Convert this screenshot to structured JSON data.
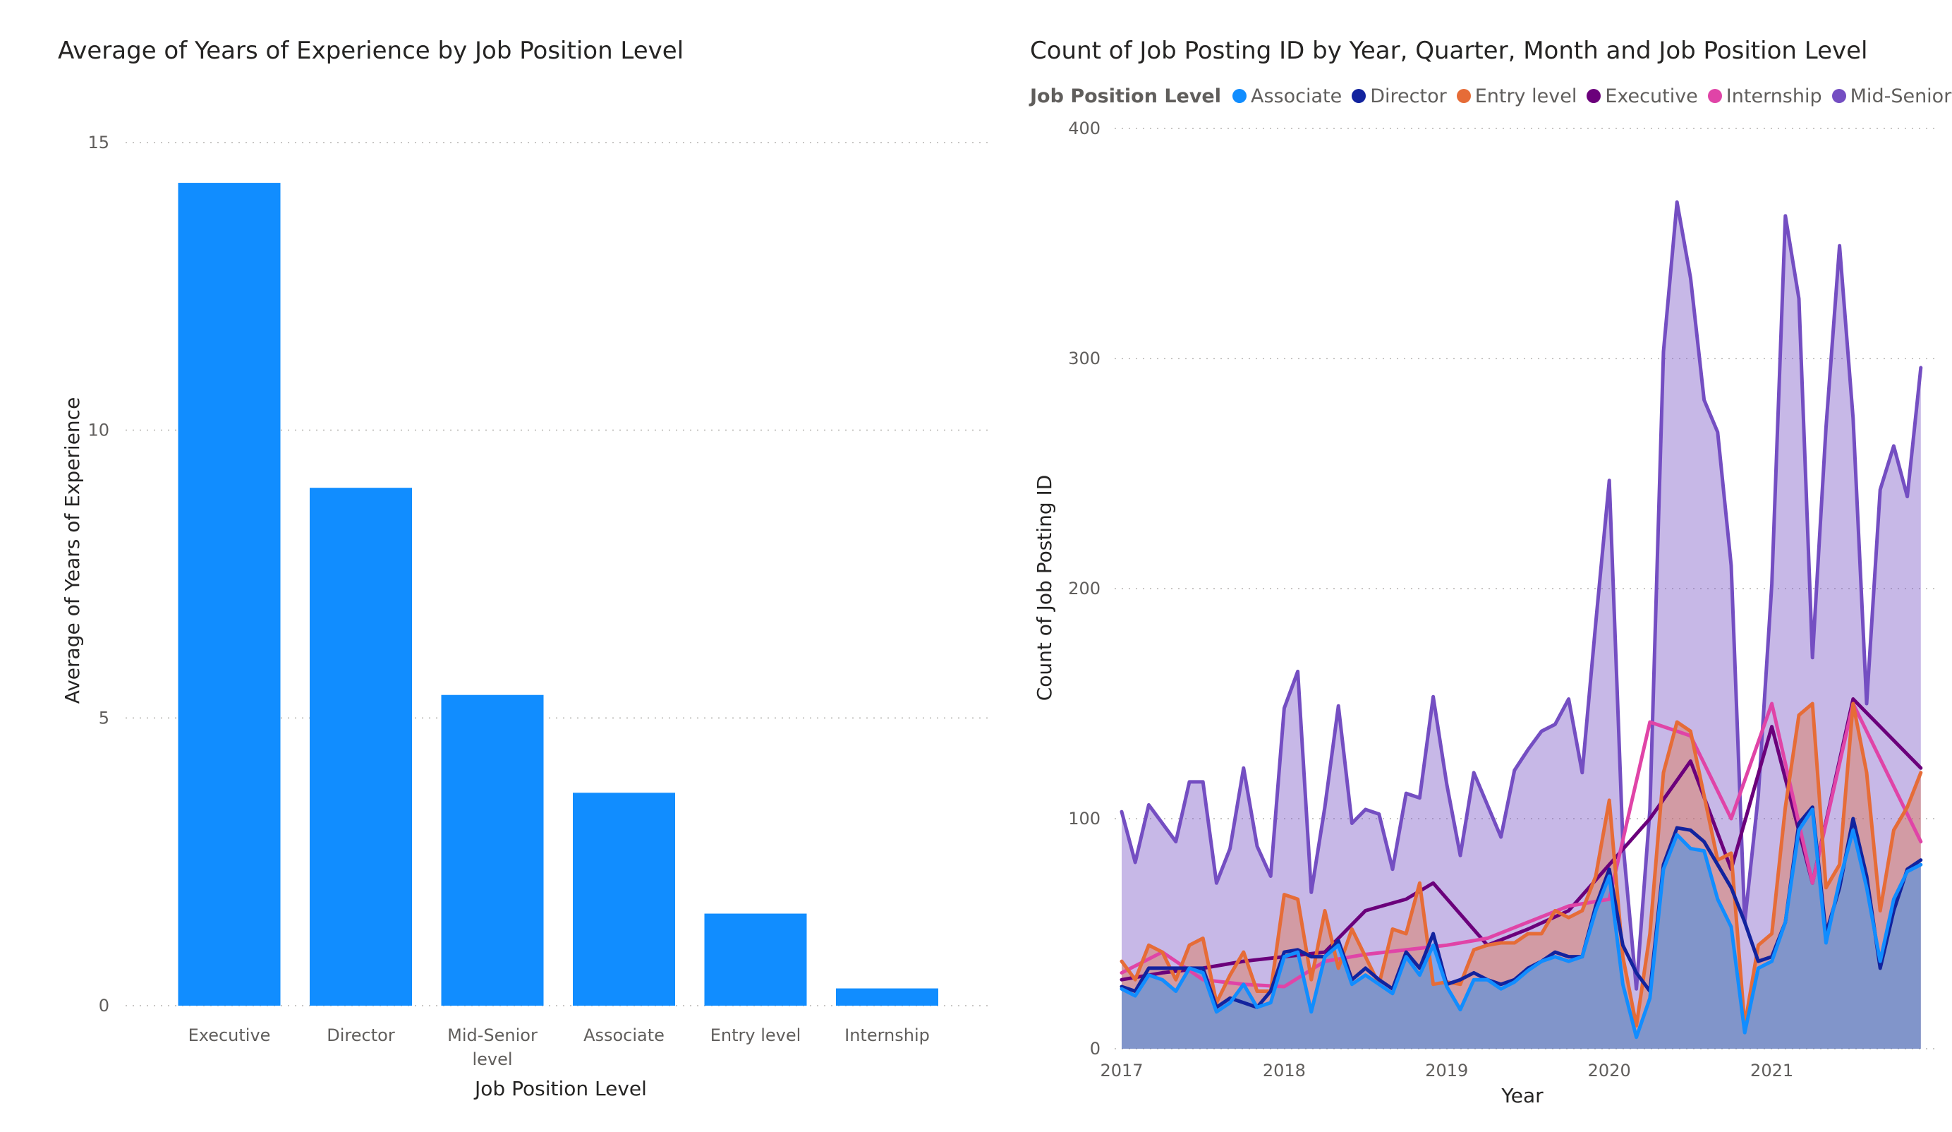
{
  "chart_data": [
    {
      "type": "bar",
      "title": "Average of Years of Experience by Job Position Level",
      "xlabel": "Job Position Level",
      "ylabel": "Average of Years of Experience",
      "categories": [
        "Executive",
        "Director",
        "Mid-Senior level",
        "Associate",
        "Entry level",
        "Internship"
      ],
      "values": [
        14.3,
        9.0,
        5.4,
        3.7,
        1.6,
        0.3
      ],
      "ylim": [
        0,
        15
      ],
      "yticks": [
        0,
        5,
        10,
        15
      ],
      "grid": true,
      "color": "#118DFF"
    },
    {
      "type": "area",
      "title": "Count of Job Posting ID by Year, Quarter, Month and Job Position Level",
      "xlabel": "Year",
      "ylabel": "Count of Job Posting ID",
      "legend_title": "Job Position Level",
      "legend_position": "top",
      "ylim": [
        0,
        400
      ],
      "yticks": [
        0,
        100,
        200,
        300,
        400
      ],
      "xlim": [
        "2017-01",
        "2021-12"
      ],
      "xticks": [
        "2017",
        "2018",
        "2019",
        "2020",
        "2021"
      ],
      "grid": true,
      "series": [
        {
          "name": "Associate",
          "color": "#118DFF",
          "fill": true,
          "x": [
            "2017-01",
            "2017-02",
            "2017-03",
            "2017-04",
            "2017-05",
            "2017-06",
            "2017-07",
            "2017-08",
            "2017-09",
            "2017-10",
            "2017-11",
            "2017-12",
            "2018-01",
            "2018-02",
            "2018-03",
            "2018-04",
            "2018-05",
            "2018-06",
            "2018-07",
            "2018-08",
            "2018-09",
            "2018-10",
            "2018-11",
            "2018-12",
            "2019-01",
            "2019-02",
            "2019-03",
            "2019-04",
            "2019-05",
            "2019-06",
            "2019-07",
            "2019-08",
            "2019-09",
            "2019-10",
            "2019-11",
            "2019-12",
            "2020-01",
            "2020-02",
            "2020-03",
            "2020-04",
            "2020-05",
            "2020-06",
            "2020-07",
            "2020-08",
            "2020-09",
            "2020-10",
            "2020-11",
            "2020-12",
            "2021-01",
            "2021-02",
            "2021-03",
            "2021-04",
            "2021-05",
            "2021-06",
            "2021-07",
            "2021-08",
            "2021-09",
            "2021-10",
            "2021-11",
            "2021-12"
          ],
          "y": [
            26,
            23,
            32,
            30,
            25,
            35,
            33,
            16,
            20,
            28,
            18,
            20,
            40,
            42,
            16,
            40,
            45,
            28,
            32,
            28,
            24,
            40,
            32,
            45,
            27,
            17,
            30,
            30,
            26,
            29,
            34,
            38,
            40,
            38,
            40,
            60,
            75,
            28,
            5,
            22,
            78,
            93,
            87,
            86,
            65,
            53,
            7,
            35,
            38,
            55,
            95,
            104,
            46,
            73,
            95,
            70,
            38,
            65,
            77,
            80
          ]
        },
        {
          "name": "Director",
          "color": "#12239E",
          "fill": false,
          "x": [
            "2017-01",
            "2017-02",
            "2017-03",
            "2017-04",
            "2017-05",
            "2017-06",
            "2017-07",
            "2017-08",
            "2017-09",
            "2017-10",
            "2017-11",
            "2017-12",
            "2018-01",
            "2018-02",
            "2018-03",
            "2018-04",
            "2018-05",
            "2018-06",
            "2018-07",
            "2018-08",
            "2018-09",
            "2018-10",
            "2018-11",
            "2018-12",
            "2019-01",
            "2019-02",
            "2019-03",
            "2019-04",
            "2019-05",
            "2019-06",
            "2019-07",
            "2019-08",
            "2019-09",
            "2019-10",
            "2019-11",
            "2019-12",
            "2020-01",
            "2020-02",
            "2020-03",
            "2020-04",
            "2020-05",
            "2020-06",
            "2020-07",
            "2020-08",
            "2020-09",
            "2020-10",
            "2020-11",
            "2020-12",
            "2021-01",
            "2021-02",
            "2021-03",
            "2021-04",
            "2021-05",
            "2021-06",
            "2021-07",
            "2021-08",
            "2021-09",
            "2021-10",
            "2021-11",
            "2021-12"
          ],
          "y": [
            27,
            25,
            35,
            35,
            35,
            35,
            35,
            18,
            22,
            20,
            18,
            25,
            42,
            43,
            40,
            40,
            47,
            30,
            35,
            30,
            26,
            42,
            35,
            50,
            28,
            30,
            33,
            30,
            28,
            30,
            35,
            38,
            42,
            40,
            40,
            62,
            78,
            45,
            33,
            25,
            80,
            96,
            95,
            90,
            80,
            70,
            55,
            38,
            40,
            55,
            98,
            105,
            50,
            70,
            100,
            75,
            35,
            60,
            78,
            82
          ]
        },
        {
          "name": "Entry level",
          "color": "#E66C37",
          "fill": true,
          "x": [
            "2017-01",
            "2017-02",
            "2017-03",
            "2017-04",
            "2017-05",
            "2017-06",
            "2017-07",
            "2017-08",
            "2017-09",
            "2017-10",
            "2017-11",
            "2017-12",
            "2018-01",
            "2018-02",
            "2018-03",
            "2018-04",
            "2018-05",
            "2018-06",
            "2018-07",
            "2018-08",
            "2018-09",
            "2018-10",
            "2018-11",
            "2018-12",
            "2019-01",
            "2019-02",
            "2019-03",
            "2019-04",
            "2019-05",
            "2019-06",
            "2019-07",
            "2019-08",
            "2019-09",
            "2019-10",
            "2019-11",
            "2019-12",
            "2020-01",
            "2020-02",
            "2020-03",
            "2020-04",
            "2020-05",
            "2020-06",
            "2020-07",
            "2020-08",
            "2020-09",
            "2020-10",
            "2020-11",
            "2020-12",
            "2021-01",
            "2021-02",
            "2021-03",
            "2021-04",
            "2021-05",
            "2021-06",
            "2021-07",
            "2021-08",
            "2021-09",
            "2021-10",
            "2021-11",
            "2021-12"
          ],
          "y": [
            38,
            30,
            45,
            42,
            30,
            45,
            48,
            20,
            32,
            42,
            25,
            25,
            67,
            65,
            30,
            60,
            35,
            52,
            40,
            28,
            52,
            50,
            72,
            28,
            29,
            28,
            43,
            45,
            46,
            46,
            50,
            50,
            60,
            57,
            60,
            75,
            108,
            40,
            10,
            50,
            120,
            142,
            138,
            110,
            82,
            85,
            10,
            45,
            50,
            105,
            145,
            150,
            70,
            80,
            150,
            120,
            60,
            95,
            105,
            120
          ]
        },
        {
          "name": "Executive",
          "color": "#6B007B",
          "fill": false,
          "x": [
            "2017-01",
            "2017-04",
            "2017-07",
            "2017-10",
            "2018-01",
            "2018-04",
            "2018-07",
            "2018-10",
            "2018-12",
            "2019-04",
            "2019-07",
            "2019-10",
            "2020-01",
            "2020-04",
            "2020-07",
            "2020-10",
            "2021-01",
            "2021-04",
            "2021-07",
            "2021-12"
          ],
          "y": [
            30,
            33,
            35,
            38,
            40,
            42,
            60,
            65,
            72,
            45,
            52,
            60,
            80,
            100,
            125,
            78,
            140,
            72,
            152,
            122
          ]
        },
        {
          "name": "Internship",
          "color": "#E044A7",
          "fill": false,
          "x": [
            "2017-01",
            "2017-04",
            "2017-07",
            "2017-10",
            "2018-01",
            "2018-04",
            "2018-07",
            "2018-10",
            "2019-01",
            "2019-04",
            "2019-07",
            "2019-10",
            "2020-01",
            "2020-04",
            "2020-07",
            "2020-10",
            "2021-01",
            "2021-04",
            "2021-07",
            "2021-12"
          ],
          "y": [
            33,
            42,
            30,
            28,
            27,
            38,
            41,
            43,
            45,
            48,
            55,
            62,
            65,
            142,
            136,
            100,
            150,
            72,
            150,
            90
          ]
        },
        {
          "name": "Mid-Senior level",
          "color": "#744EC2",
          "fill": true,
          "x": [
            "2017-01",
            "2017-02",
            "2017-03",
            "2017-04",
            "2017-05",
            "2017-06",
            "2017-07",
            "2017-08",
            "2017-09",
            "2017-10",
            "2017-11",
            "2017-12",
            "2018-01",
            "2018-02",
            "2018-03",
            "2018-04",
            "2018-05",
            "2018-06",
            "2018-07",
            "2018-08",
            "2018-09",
            "2018-10",
            "2018-11",
            "2018-12",
            "2019-01",
            "2019-02",
            "2019-03",
            "2019-04",
            "2019-05",
            "2019-06",
            "2019-07",
            "2019-08",
            "2019-09",
            "2019-10",
            "2019-11",
            "2019-12",
            "2020-01",
            "2020-02",
            "2020-03",
            "2020-04",
            "2020-05",
            "2020-06",
            "2020-07",
            "2020-08",
            "2020-09",
            "2020-10",
            "2020-11",
            "2020-12",
            "2021-01",
            "2021-02",
            "2021-03",
            "2021-04",
            "2021-05",
            "2021-06",
            "2021-07",
            "2021-08",
            "2021-09",
            "2021-10",
            "2021-11",
            "2021-12"
          ],
          "y": [
            103,
            81,
            106,
            98,
            90,
            116,
            116,
            72,
            87,
            122,
            88,
            75,
            148,
            164,
            68,
            105,
            149,
            98,
            104,
            102,
            78,
            111,
            109,
            153,
            115,
            84,
            120,
            106,
            92,
            121,
            130,
            138,
            141,
            152,
            120,
            185,
            247,
            90,
            26,
            104,
            303,
            368,
            335,
            282,
            268,
            210,
            55,
            110,
            202,
            362,
            326,
            170,
            270,
            349,
            274,
            150,
            243,
            262,
            240,
            296
          ]
        }
      ]
    }
  ]
}
